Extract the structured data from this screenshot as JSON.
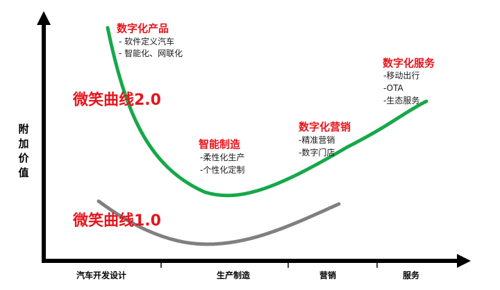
{
  "y_axis_label": [
    "附",
    "加",
    "价",
    "值"
  ],
  "stages": [
    "汽车开发设计",
    "生产制造",
    "营销",
    "服务"
  ],
  "curves": {
    "v2_label": "微笑曲线2.0",
    "v1_label": "微笑曲线1.0",
    "v2_color": "#16a84a",
    "v1_color": "#808080"
  },
  "annotations": {
    "digital_product": {
      "title": "数字化产品",
      "items": [
        "-   软件定义汽车",
        "-   智能化、网联化"
      ]
    },
    "smart_manufacturing": {
      "title": "智能制造",
      "items": [
        "-柔性化生产",
        "-个性化定制"
      ]
    },
    "digital_marketing": {
      "title": "数字化营销",
      "items": [
        "-精准营销",
        "-数字门店"
      ]
    },
    "digital_service": {
      "title": "数字化服务",
      "items": [
        "-移动出行",
        "-OTA",
        "-生态服务"
      ]
    }
  },
  "colors": {
    "accent_red": "#e8141b",
    "axis": "#000000"
  }
}
